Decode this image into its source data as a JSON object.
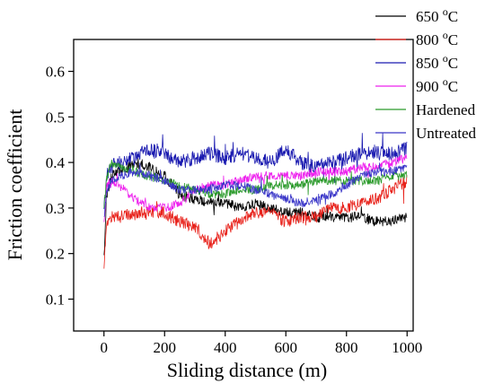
{
  "chart_data": {
    "type": "line",
    "title": "",
    "xlabel": "Sliding distance (m)",
    "ylabel": "Friction coefficient",
    "xlim": [
      -100,
      1020
    ],
    "ylim": [
      0.03,
      0.67
    ],
    "xticks": [
      0,
      200,
      400,
      600,
      800,
      1000
    ],
    "yticks": [
      0.1,
      0.2,
      0.3,
      0.4,
      0.5,
      0.6
    ],
    "grid": false,
    "legend_position": "top-right",
    "series": [
      {
        "name": "650 °C",
        "legend_text": "650 ",
        "legend_sup": "o",
        "legend_unit": "C",
        "color": "#000000",
        "x": [
          0,
          10,
          25,
          50,
          100,
          150,
          200,
          250,
          300,
          350,
          400,
          450,
          500,
          550,
          600,
          650,
          700,
          750,
          800,
          850,
          900,
          950,
          1000
        ],
        "y": [
          0.2,
          0.33,
          0.37,
          0.38,
          0.4,
          0.39,
          0.37,
          0.33,
          0.32,
          0.31,
          0.31,
          0.3,
          0.31,
          0.3,
          0.29,
          0.29,
          0.28,
          0.28,
          0.28,
          0.28,
          0.27,
          0.27,
          0.28
        ],
        "noise": 0.012
      },
      {
        "name": "800 °C",
        "legend_text": "800 ",
        "legend_sup": "o",
        "legend_unit": "C",
        "color": "#e8221b",
        "x": [
          0,
          10,
          25,
          50,
          100,
          150,
          200,
          250,
          300,
          350,
          400,
          450,
          500,
          550,
          600,
          650,
          700,
          750,
          800,
          850,
          900,
          950,
          1000
        ],
        "y": [
          0.17,
          0.27,
          0.28,
          0.28,
          0.29,
          0.29,
          0.29,
          0.27,
          0.26,
          0.22,
          0.25,
          0.27,
          0.29,
          0.29,
          0.27,
          0.28,
          0.28,
          0.3,
          0.3,
          0.31,
          0.32,
          0.34,
          0.36
        ],
        "noise": 0.014
      },
      {
        "name": "850 °C",
        "legend_text": "850 ",
        "legend_sup": "o",
        "legend_unit": "C",
        "color": "#1a1ab0",
        "x": [
          0,
          10,
          25,
          50,
          100,
          150,
          200,
          250,
          300,
          350,
          400,
          450,
          500,
          550,
          600,
          650,
          700,
          750,
          800,
          850,
          900,
          950,
          1000
        ],
        "y": [
          0.3,
          0.37,
          0.39,
          0.4,
          0.41,
          0.43,
          0.42,
          0.4,
          0.41,
          0.42,
          0.41,
          0.42,
          0.41,
          0.4,
          0.43,
          0.4,
          0.39,
          0.4,
          0.41,
          0.42,
          0.42,
          0.42,
          0.43
        ],
        "noise": 0.016
      },
      {
        "name": "900 °C",
        "legend_text": "900 ",
        "legend_sup": "o",
        "legend_unit": "C",
        "color": "#ee22ee",
        "x": [
          0,
          10,
          25,
          50,
          100,
          150,
          200,
          250,
          300,
          350,
          400,
          450,
          500,
          550,
          600,
          650,
          700,
          750,
          800,
          850,
          900,
          950,
          1000
        ],
        "y": [
          0.27,
          0.35,
          0.36,
          0.35,
          0.32,
          0.3,
          0.3,
          0.31,
          0.34,
          0.35,
          0.35,
          0.36,
          0.37,
          0.37,
          0.37,
          0.37,
          0.38,
          0.38,
          0.38,
          0.39,
          0.39,
          0.4,
          0.41
        ],
        "noise": 0.01
      },
      {
        "name": "Hardened",
        "legend_text": "Hardened",
        "color": "#2a9a2a",
        "x": [
          0,
          10,
          25,
          50,
          100,
          150,
          200,
          250,
          300,
          350,
          400,
          450,
          500,
          550,
          600,
          650,
          700,
          750,
          800,
          850,
          900,
          950,
          1000
        ],
        "y": [
          0.3,
          0.37,
          0.4,
          0.39,
          0.38,
          0.37,
          0.36,
          0.35,
          0.34,
          0.33,
          0.33,
          0.34,
          0.34,
          0.35,
          0.35,
          0.35,
          0.36,
          0.36,
          0.36,
          0.36,
          0.36,
          0.37,
          0.37
        ],
        "noise": 0.01
      },
      {
        "name": "Untreated",
        "legend_text": "Untreated",
        "color": "#3a36c8",
        "x": [
          0,
          10,
          25,
          50,
          100,
          150,
          200,
          250,
          300,
          350,
          400,
          450,
          500,
          550,
          600,
          650,
          700,
          750,
          800,
          850,
          900,
          950,
          1000
        ],
        "y": [
          0.28,
          0.34,
          0.36,
          0.37,
          0.38,
          0.37,
          0.36,
          0.34,
          0.34,
          0.34,
          0.35,
          0.35,
          0.34,
          0.33,
          0.32,
          0.31,
          0.32,
          0.33,
          0.35,
          0.37,
          0.38,
          0.38,
          0.39
        ],
        "noise": 0.01
      }
    ]
  }
}
